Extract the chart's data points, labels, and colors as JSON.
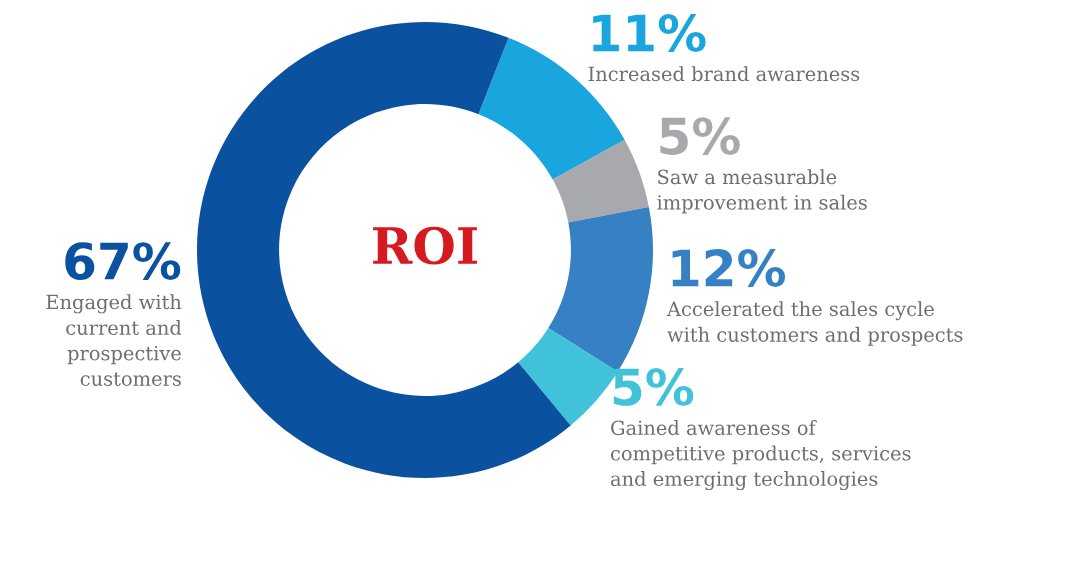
{
  "chart_data": {
    "type": "donut",
    "title": "ROI",
    "categories": [
      "Increased brand awareness",
      "Saw a measurable\nimprovement in sales",
      "Accelerated the sales cycle\nwith customers and prospects",
      "Gained awareness of\ncompetitive products, services\nand emerging technologies",
      "Engaged with\ncurrent and\nprospective\ncustomers"
    ],
    "values": [
      11,
      5,
      12,
      5,
      67
    ],
    "value_labels": [
      "11%",
      "5%",
      "12%",
      "5%",
      "67%"
    ],
    "colors": [
      "#19a5de",
      "#a7a9ac",
      "#3680c4",
      "#3fc2da",
      "#0a52a0"
    ]
  }
}
